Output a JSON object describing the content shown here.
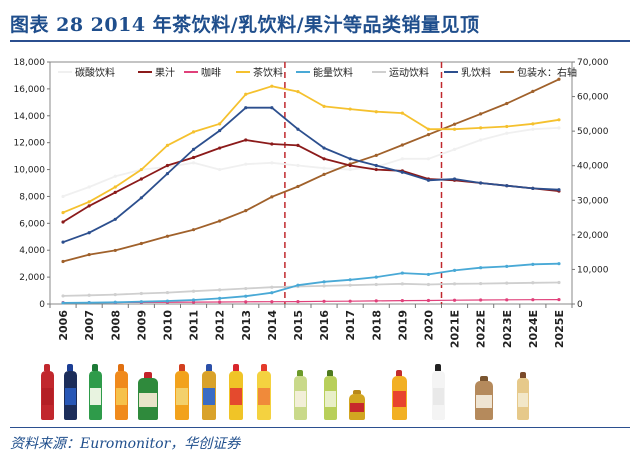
{
  "title": "图表 28   2014 年茶饮料/乳饮料/果汁等品类销量见顶",
  "source": "资料来源：Euromonitor，华创证券",
  "colors": {
    "carbonated": "#f0f0f0",
    "juice": "#8b1a1a",
    "coffee": "#e0407a",
    "tea": "#f5c12e",
    "energy": "#49a9d6",
    "sports": "#cfcfcf",
    "dairy": "#2c4f8e",
    "water": "#a0612b",
    "divider": "#c0282d",
    "title": "#1f4e8c"
  },
  "chart_data": {
    "type": "line",
    "categories": [
      "2006",
      "2007",
      "2008",
      "2009",
      "2010",
      "2011",
      "2012",
      "2013",
      "2014",
      "2015",
      "2016",
      "2017",
      "2018",
      "2019",
      "2020",
      "2021E",
      "2022E",
      "2023E",
      "2024E",
      "2025E"
    ],
    "y_left": {
      "min": 0,
      "max": 18000,
      "ticks": [
        "0",
        "2,000",
        "4,000",
        "6,000",
        "8,000",
        "10,000",
        "12,000",
        "14,000",
        "16,000",
        "18,000"
      ]
    },
    "y_right": {
      "min": 0,
      "max": 70000,
      "ticks": [
        "0",
        "10,000",
        "20,000",
        "30,000",
        "40,000",
        "50,000",
        "60,000",
        "70,000"
      ]
    },
    "legend_position": "top",
    "grid": false,
    "dividers": [
      "2014-2015",
      "2020-2021E"
    ],
    "series": [
      {
        "name": "碳酸饮料",
        "color_key": "carbonated",
        "axis": "left",
        "values": [
          8000,
          8700,
          9500,
          10000,
          10200,
          10500,
          10000,
          10400,
          10500,
          10300,
          10100,
          10000,
          10200,
          10800,
          10800,
          11500,
          12200,
          12700,
          13000,
          13100
        ]
      },
      {
        "name": "果汁",
        "color_key": "juice",
        "axis": "left",
        "values": [
          6100,
          7300,
          8300,
          9300,
          10300,
          10900,
          11600,
          12200,
          11900,
          11800,
          10800,
          10300,
          10000,
          9900,
          9300,
          9200,
          9000,
          8800,
          8600,
          8400
        ]
      },
      {
        "name": "咖啡",
        "color_key": "coffee",
        "axis": "left",
        "values": [
          100,
          100,
          110,
          120,
          130,
          140,
          150,
          160,
          170,
          180,
          200,
          210,
          230,
          250,
          260,
          280,
          300,
          310,
          320,
          330
        ]
      },
      {
        "name": "茶饮料",
        "color_key": "tea",
        "axis": "left",
        "values": [
          6800,
          7600,
          8700,
          10000,
          11800,
          12800,
          13400,
          15600,
          16200,
          15800,
          14700,
          14500,
          14300,
          14200,
          13000,
          13000,
          13100,
          13200,
          13400,
          13700
        ]
      },
      {
        "name": "能量饮料",
        "color_key": "energy",
        "axis": "left",
        "values": [
          80,
          100,
          130,
          170,
          220,
          300,
          420,
          580,
          840,
          1400,
          1650,
          1800,
          2000,
          2300,
          2200,
          2500,
          2700,
          2800,
          2950,
          3000
        ]
      },
      {
        "name": "运动饮料",
        "color_key": "sports",
        "axis": "left",
        "values": [
          600,
          650,
          700,
          780,
          850,
          950,
          1050,
          1150,
          1250,
          1300,
          1350,
          1400,
          1450,
          1500,
          1450,
          1500,
          1520,
          1550,
          1580,
          1600
        ]
      },
      {
        "name": "乳饮料",
        "color_key": "dairy",
        "axis": "left",
        "values": [
          4600,
          5300,
          6300,
          7900,
          9700,
          11500,
          12900,
          14600,
          14600,
          13000,
          11600,
          10800,
          10300,
          9800,
          9200,
          9300,
          9000,
          8800,
          8600,
          8500
        ]
      },
      {
        "name": "包装水：右轴",
        "color_key": "water",
        "axis": "right",
        "values": [
          12300,
          14300,
          15500,
          17500,
          19600,
          21500,
          24000,
          27000,
          31000,
          34000,
          37500,
          40500,
          43000,
          46000,
          49000,
          52000,
          55000,
          58000,
          61500,
          65000
        ]
      }
    ]
  },
  "products": [
    {
      "name": "cola-bottle",
      "body": "#c1272d",
      "cap": "#c1272d",
      "label": "#b41f25",
      "h": 56,
      "w": 13
    },
    {
      "name": "pepsi-bottle",
      "body": "#1c2d5a",
      "cap": "#1b3e94",
      "label": "#2857b6",
      "h": 56,
      "w": 13
    },
    {
      "name": "sprite-bottle",
      "body": "#2e9b4a",
      "cap": "#1d7a37",
      "label": "#e8f3e0",
      "h": 56,
      "w": 13
    },
    {
      "name": "fanta-bottle",
      "body": "#f08a1c",
      "cap": "#e07010",
      "label": "#f6c14b",
      "h": 56,
      "w": 13
    },
    {
      "name": "juice-carton",
      "body": "#2f8a3c",
      "cap": "#c4232a",
      "label": "#e9e4c9",
      "h": 48,
      "w": 20
    },
    {
      "name": "tea-bottle-orange",
      "body": "#f2a21c",
      "cap": "#d23f1f",
      "label": "#f3d06b",
      "h": 56,
      "w": 14
    },
    {
      "name": "iced-tea-bottle",
      "body": "#d9a22a",
      "cap": "#2b4fa8",
      "label": "#3a6cc4",
      "h": 56,
      "w": 14
    },
    {
      "name": "lemon-tea-bottle",
      "body": "#f0c427",
      "cap": "#d8262c",
      "label": "#e44a2e",
      "h": 56,
      "w": 14
    },
    {
      "name": "herbal-tea-bottle",
      "body": "#f4d240",
      "cap": "#e43a2a",
      "label": "#f08a3a",
      "h": 56,
      "w": 14
    },
    {
      "name": "green-tea-bottle",
      "body": "#c9d98a",
      "cap": "#6c9a2a",
      "label": "#f2efd8",
      "h": 50,
      "w": 13
    },
    {
      "name": "matcha-tea-bottle",
      "body": "#b8cf5a",
      "cap": "#4e7a1e",
      "label": "#e8efc8",
      "h": 50,
      "w": 13
    },
    {
      "name": "energy-drink-can",
      "body": "#d2a521",
      "cap": "#b8891a",
      "label": "#c7282c",
      "h": 30,
      "w": 16
    },
    {
      "name": "energy-drink-bottle",
      "body": "#f2b024",
      "cap": "#c22c2c",
      "label": "#e8442e",
      "h": 50,
      "w": 15
    },
    {
      "name": "sparkling-water-bottle",
      "body": "#f4f4f4",
      "cap": "#222222",
      "label": "#e9e9e9",
      "h": 56,
      "w": 13
    },
    {
      "name": "oat-milk-carton",
      "body": "#b58a5c",
      "cap": "#7a5530",
      "label": "#efe4d2",
      "h": 44,
      "w": 18
    },
    {
      "name": "coffee-bottle",
      "body": "#e6c98a",
      "cap": "#7a4a2a",
      "label": "#f2e7c8",
      "h": 48,
      "w": 12
    }
  ]
}
